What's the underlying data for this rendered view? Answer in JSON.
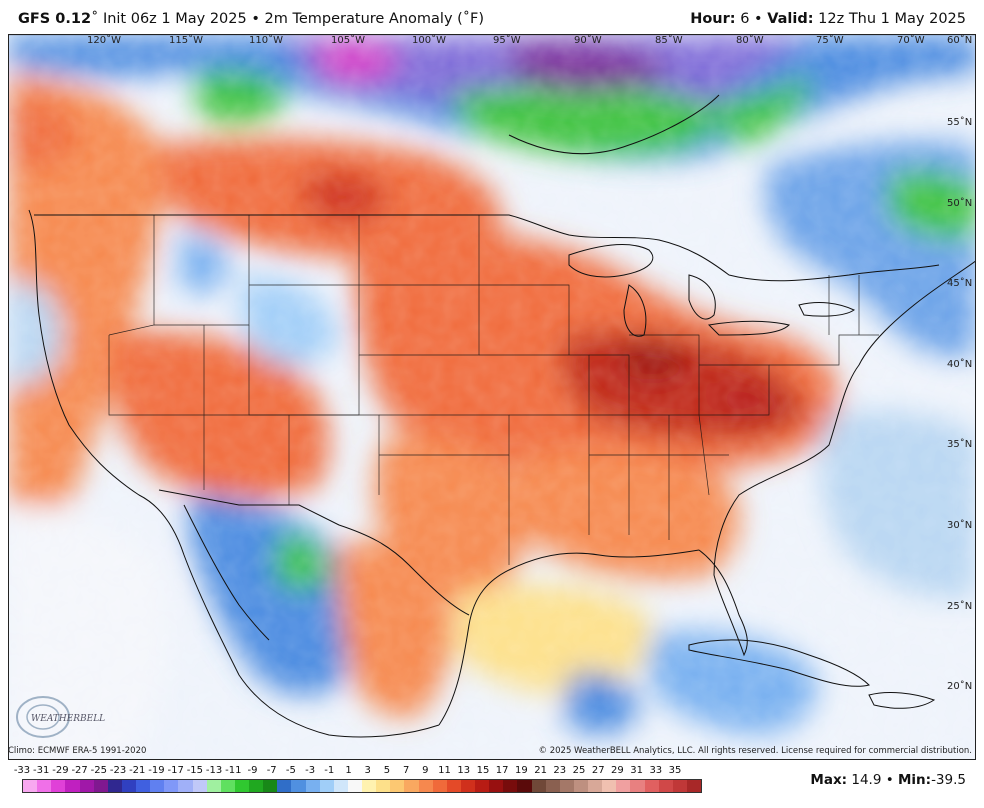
{
  "header": {
    "model": "GFS 0.12",
    "init": "Init 06z 1 May 2025",
    "field": "2m Temperature Anomaly (˚F)",
    "hour_label": "Hour:",
    "hour_value": "6",
    "valid_label": "Valid:",
    "valid_value": "12z Thu 1 May 2025"
  },
  "map": {
    "longitude_labels": [
      "120˚W",
      "115˚W",
      "110˚W",
      "105˚W",
      "100˚W",
      "95˚W",
      "90˚W",
      "85˚W",
      "80˚W",
      "75˚W",
      "70˚W",
      "60˚N"
    ],
    "latitude_labels": [
      "55˚N",
      "50˚N",
      "45˚N",
      "40˚N",
      "35˚N",
      "30˚N",
      "25˚N",
      "20˚N"
    ],
    "logo_text": "WEATHERBELL",
    "colors": {
      "ocean": "#eef3fb",
      "warm_strong": "#c02818",
      "warm": "#f06a3a",
      "warm_light": "#f8a880",
      "neutral": "#f6f6f6",
      "cool_light": "#b8d6f2",
      "cool": "#4a8ae0",
      "cold": "#2a3ec8",
      "green": "#3cc23c",
      "purple": "#7a2a9a",
      "magenta": "#d43cc8"
    }
  },
  "footer": {
    "climo": "Climo: ECMWF ERA-5 1991-2020",
    "copyright": "© 2025 WeatherBELL Analytics, LLC. All rights reserved. License required for commercial distribution."
  },
  "colorbar": {
    "labels": [
      "-33",
      "-31",
      "-29",
      "-27",
      "-25",
      "-23",
      "-21",
      "-19",
      "-17",
      "-15",
      "-13",
      "-11",
      "-9",
      "-7",
      "-5",
      "-3",
      "-1",
      "1",
      "3",
      "5",
      "7",
      "9",
      "11",
      "13",
      "15",
      "17",
      "19",
      "21",
      "23",
      "25",
      "27",
      "29",
      "31",
      "33",
      "35"
    ],
    "colors": [
      "#f8a8f0",
      "#f070e8",
      "#e040d8",
      "#c020c0",
      "#a018a8",
      "#801890",
      "#302890",
      "#3040c0",
      "#4060e0",
      "#6080f0",
      "#8098f8",
      "#a0b0f8",
      "#c0c8f8",
      "#a0f0a0",
      "#60e060",
      "#30c830",
      "#20a820",
      "#188818",
      "#306ec8",
      "#5090e0",
      "#78b0f0",
      "#a0cef8",
      "#d0e6fa",
      "#f8f8f8",
      "#fff2b0",
      "#fde08a",
      "#fcc872",
      "#f9a860",
      "#f6884e",
      "#f06a3a",
      "#e44a28",
      "#d0301c",
      "#b81c14",
      "#981010",
      "#780c0c",
      "#5a0a0a",
      "#704838",
      "#8a6050",
      "#a47868",
      "#be9080",
      "#d8a898",
      "#f0c0b0",
      "#f0a0a0",
      "#e88080",
      "#e06060",
      "#d04848",
      "#c03838",
      "#a82828"
    ]
  },
  "stats": {
    "max_label": "Max:",
    "max_value": "14.9",
    "min_label": "Min:",
    "min_value": "-39.5"
  }
}
